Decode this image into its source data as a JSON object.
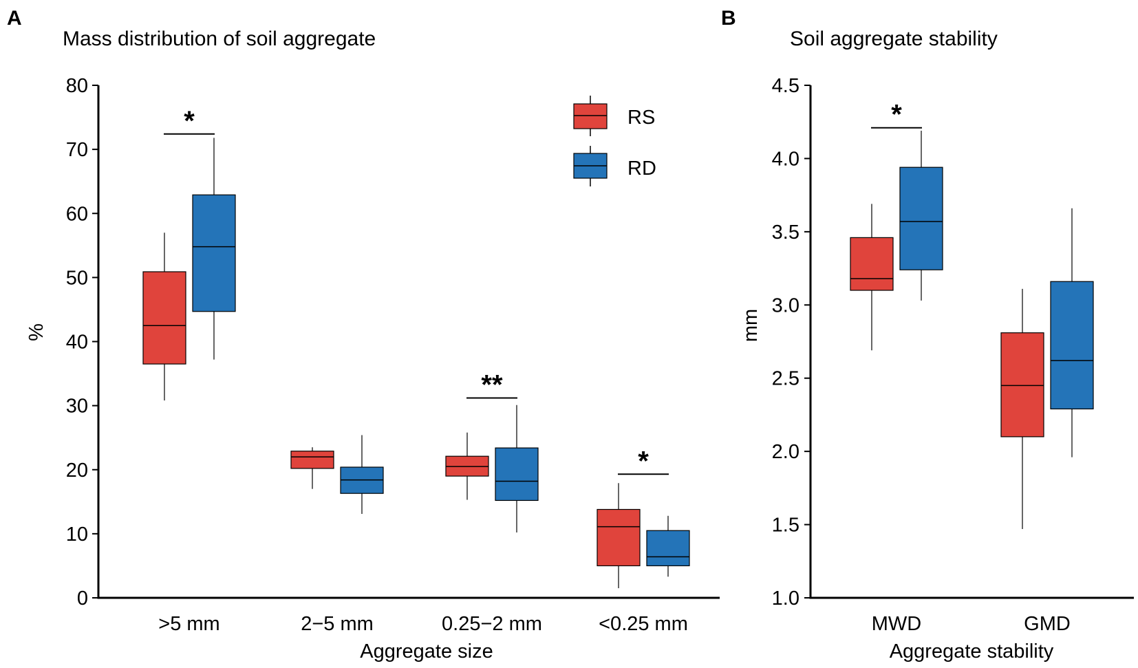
{
  "colors": {
    "RS": "#e0443c",
    "RD": "#2474b8",
    "line": "#000000"
  },
  "legend": [
    {
      "key": "RS",
      "label": "RS"
    },
    {
      "key": "RD",
      "label": "RD"
    }
  ],
  "chart_data": [
    {
      "panel": "A",
      "type": "boxplot",
      "title": "Mass distribution of soil aggregate",
      "xlabel": "Aggregate size",
      "ylabel": "%",
      "ylim": [
        0,
        80
      ],
      "yticks": [
        0,
        10,
        20,
        30,
        40,
        50,
        60,
        70,
        80
      ],
      "ytick_labels": [
        "0",
        "10",
        "20",
        "30",
        "40",
        "50",
        "60",
        "70",
        "80"
      ],
      "categories": [
        ">5 mm",
        "2−5 mm",
        "0.25−2 mm",
        "<0.25 mm"
      ],
      "series": [
        {
          "name": "RS",
          "boxes": [
            {
              "min": 30.8,
              "q1": 36.5,
              "median": 42.5,
              "q3": 50.9,
              "max": 57.0
            },
            {
              "min": 17.0,
              "q1": 20.2,
              "median": 22.0,
              "q3": 22.9,
              "max": 23.5
            },
            {
              "min": 15.3,
              "q1": 19.0,
              "median": 20.5,
              "q3": 22.1,
              "max": 25.8
            },
            {
              "min": 1.5,
              "q1": 5.0,
              "median": 11.1,
              "q3": 13.8,
              "max": 17.9
            }
          ]
        },
        {
          "name": "RD",
          "boxes": [
            {
              "min": 37.2,
              "q1": 44.7,
              "median": 54.8,
              "q3": 62.9,
              "max": 71.8
            },
            {
              "min": 13.1,
              "q1": 16.3,
              "median": 18.4,
              "q3": 20.4,
              "max": 25.4
            },
            {
              "min": 10.2,
              "q1": 15.2,
              "median": 18.2,
              "q3": 23.4,
              "max": 30.1
            },
            {
              "min": 3.3,
              "q1": 5.0,
              "median": 6.4,
              "q3": 10.5,
              "max": 12.8
            }
          ]
        }
      ],
      "significance": [
        {
          "category": 0,
          "label": "*",
          "y": 72.4
        },
        {
          "category": 2,
          "label": "**",
          "y": 31.2
        },
        {
          "category": 3,
          "label": "*",
          "y": 19.3
        }
      ]
    },
    {
      "panel": "B",
      "type": "boxplot",
      "title": "Soil aggregate stability",
      "xlabel": "Aggregate stability",
      "ylabel": "mm",
      "ylim": [
        1.0,
        4.5
      ],
      "yticks": [
        1.0,
        1.5,
        2.0,
        2.5,
        3.0,
        3.5,
        4.0,
        4.5
      ],
      "ytick_labels": [
        "1.0",
        "1.5",
        "2.0",
        "2.5",
        "3.0",
        "3.5",
        "4.0",
        "4.5"
      ],
      "categories": [
        "MWD",
        "GMD"
      ],
      "series": [
        {
          "name": "RS",
          "boxes": [
            {
              "min": 2.69,
              "q1": 3.1,
              "median": 3.18,
              "q3": 3.46,
              "max": 3.69
            },
            {
              "min": 1.47,
              "q1": 2.1,
              "median": 2.45,
              "q3": 2.81,
              "max": 3.11
            }
          ]
        },
        {
          "name": "RD",
          "boxes": [
            {
              "min": 3.03,
              "q1": 3.24,
              "median": 3.57,
              "q3": 3.94,
              "max": 4.19
            },
            {
              "min": 1.96,
              "q1": 2.29,
              "median": 2.62,
              "q3": 3.16,
              "max": 3.66
            }
          ]
        }
      ],
      "significance": [
        {
          "category": 0,
          "label": "*",
          "y": 4.21
        }
      ]
    }
  ]
}
